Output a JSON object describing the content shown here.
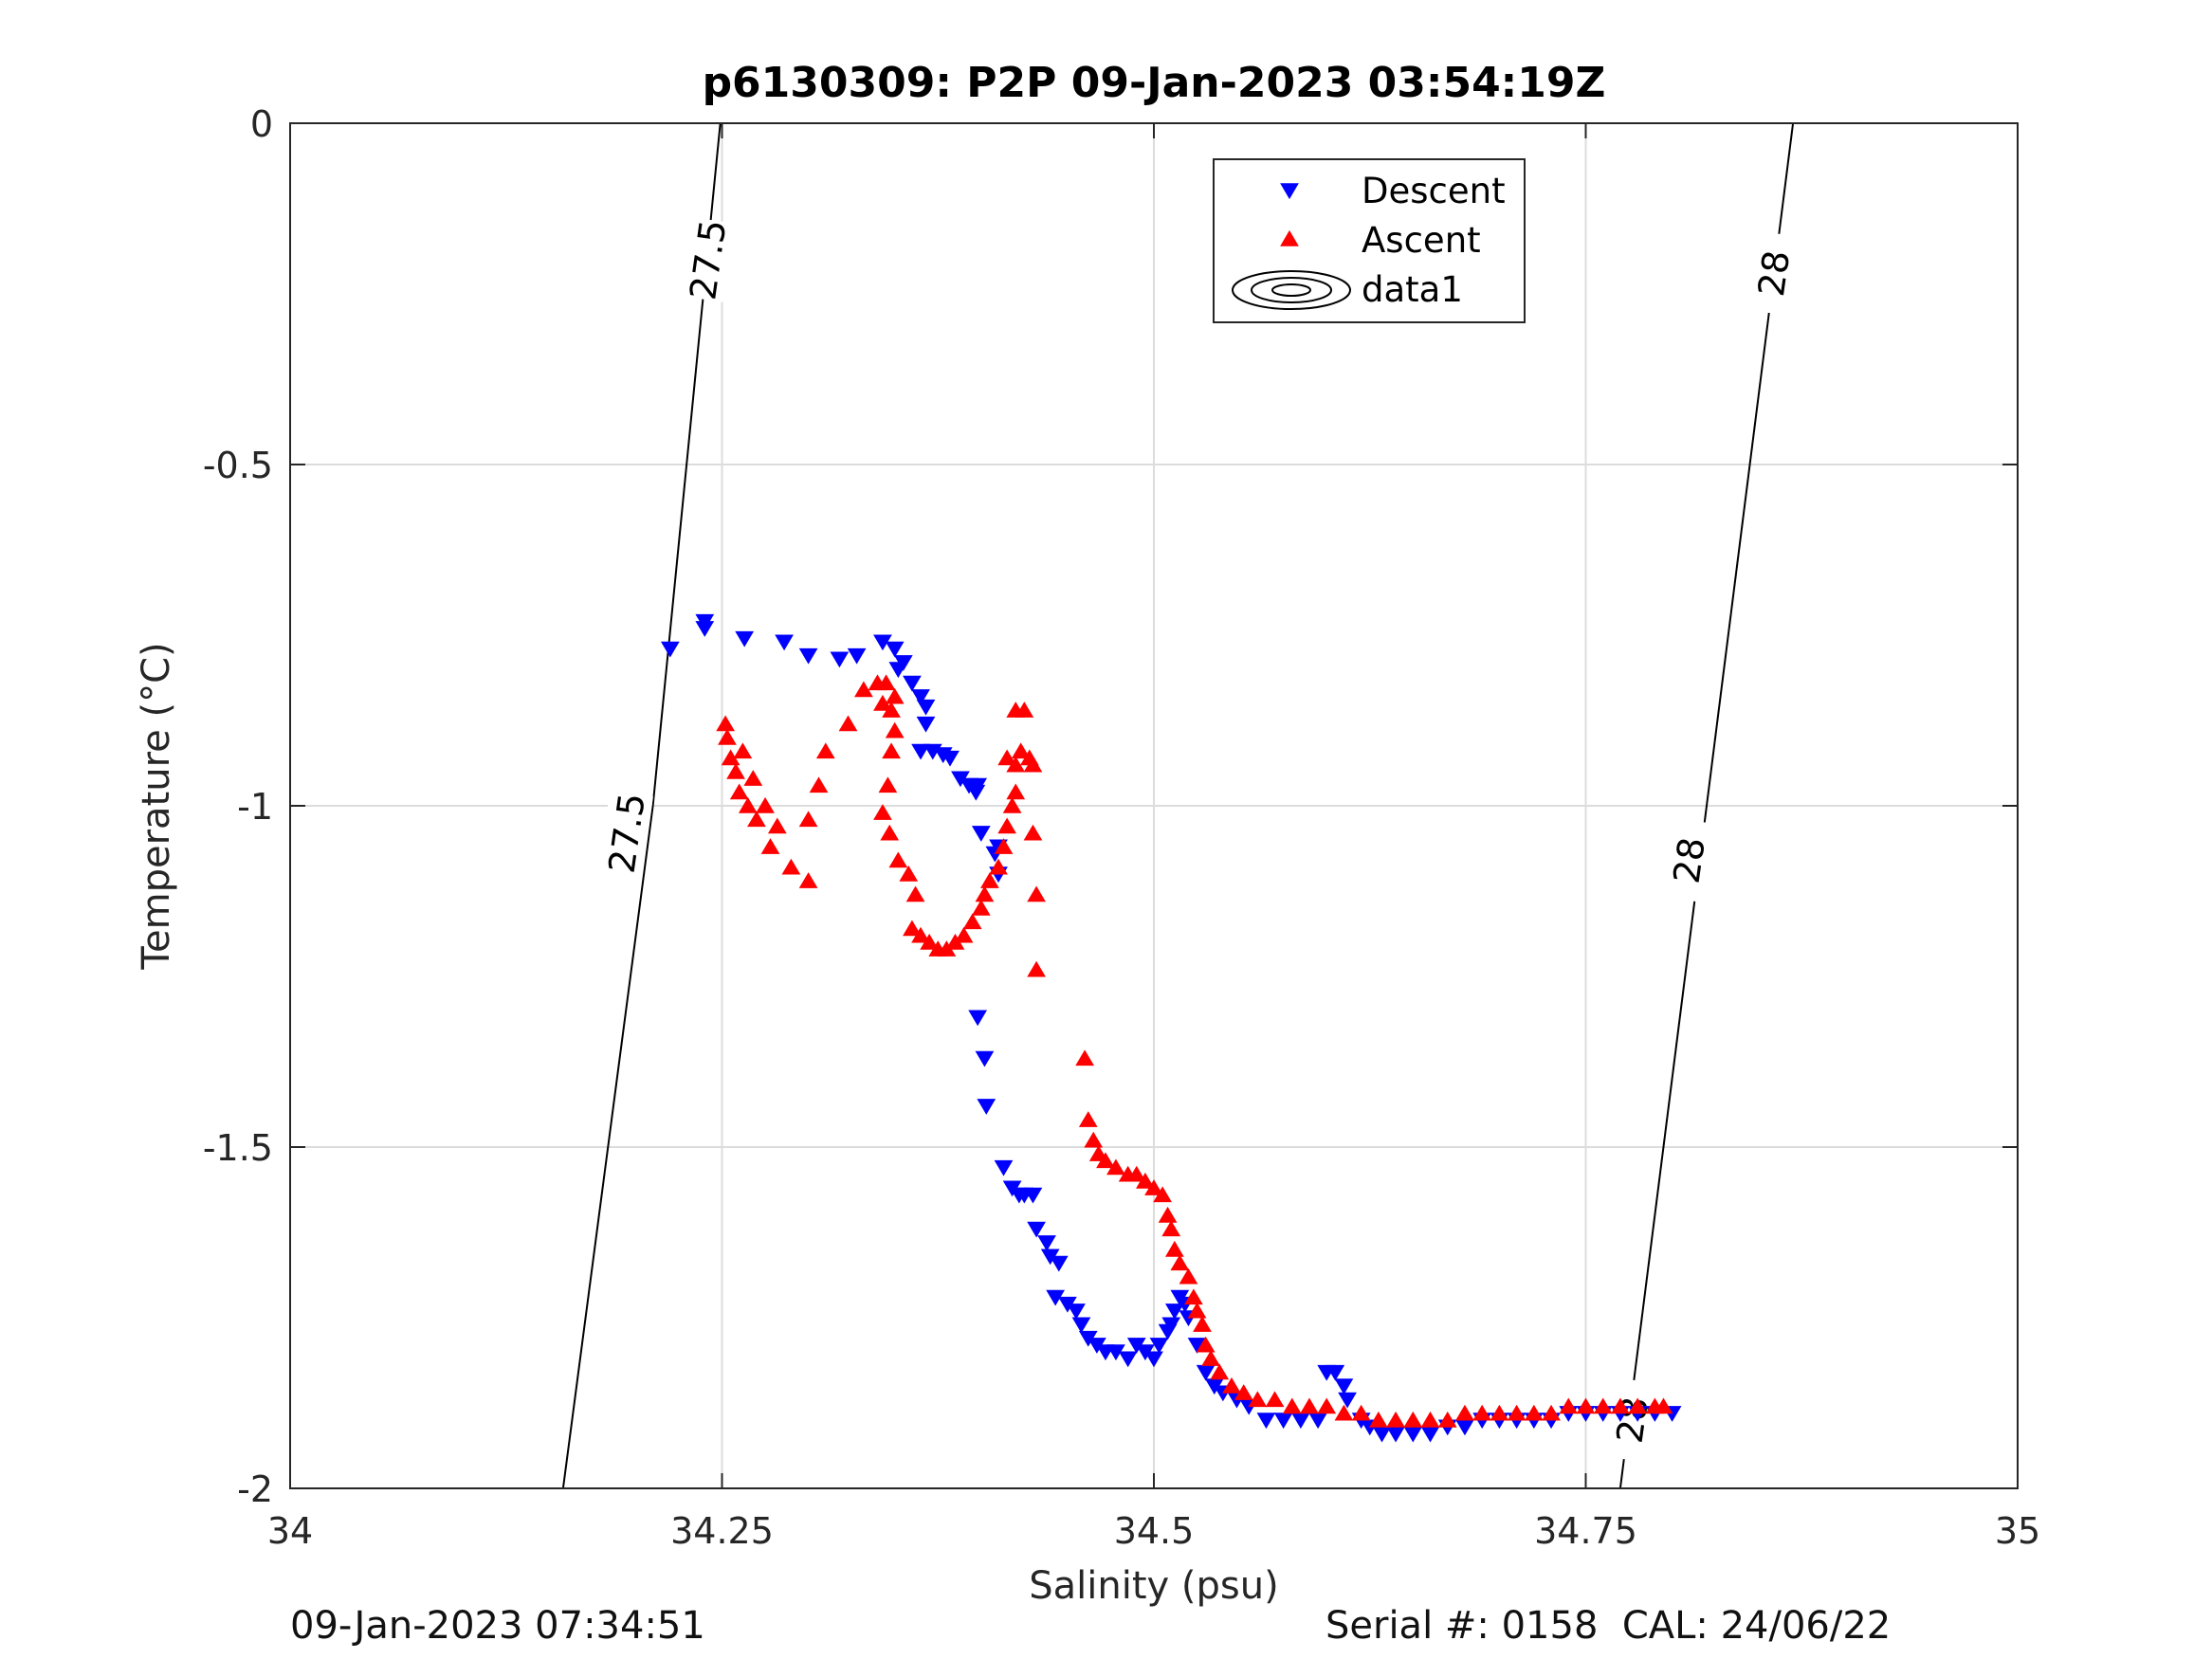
{
  "chart_data": {
    "type": "scatter",
    "title": "p6130309: P2P 09-Jan-2023 03:54:19Z",
    "xlabel": "Salinity (psu)",
    "ylabel": "Temperature (°C)",
    "xlim": [
      34,
      35
    ],
    "ylim": [
      -2,
      0
    ],
    "xticks": [
      34,
      34.25,
      34.5,
      34.75,
      35
    ],
    "xtick_labels": [
      "34",
      "34.25",
      "34.5",
      "34.75",
      "35"
    ],
    "yticks": [
      0,
      -0.5,
      -1,
      -1.5,
      -2
    ],
    "ytick_labels": [
      "0",
      "-0.5",
      "-1",
      "-1.5",
      "-2"
    ],
    "grid": true,
    "legend": {
      "placement": "top-center",
      "entries": [
        "Descent",
        "Ascent",
        "data1"
      ]
    },
    "isopycnals": [
      {
        "label": "27.5",
        "labels_shown": [
          "27.5",
          "27.5"
        ],
        "points": [
          [
            34.158,
            -2.0
          ],
          [
            34.21,
            -1.0
          ],
          [
            34.249,
            0.0
          ]
        ]
      },
      {
        "label": "28",
        "labels_shown": [
          "28",
          "28",
          "28"
        ],
        "points": [
          [
            34.77,
            -2.0
          ],
          [
            34.82,
            -1.0
          ],
          [
            34.87,
            0.0
          ]
        ]
      }
    ],
    "series": [
      {
        "name": "Descent",
        "color": "#0000ff",
        "marker": "triangle-down",
        "points": [
          [
            34.22,
            -0.77
          ],
          [
            34.24,
            -0.73
          ],
          [
            34.24,
            -0.74
          ],
          [
            34.263,
            -0.755
          ],
          [
            34.286,
            -0.76
          ],
          [
            34.3,
            -0.78
          ],
          [
            34.318,
            -0.785
          ],
          [
            34.328,
            -0.78
          ],
          [
            34.343,
            -0.76
          ],
          [
            34.35,
            -0.77
          ],
          [
            34.352,
            -0.8
          ],
          [
            34.355,
            -0.79
          ],
          [
            34.36,
            -0.82
          ],
          [
            34.365,
            -0.84
          ],
          [
            34.368,
            -0.855
          ],
          [
            34.368,
            -0.88
          ],
          [
            34.365,
            -0.92
          ],
          [
            34.372,
            -0.92
          ],
          [
            34.378,
            -0.925
          ],
          [
            34.382,
            -0.93
          ],
          [
            34.388,
            -0.96
          ],
          [
            34.393,
            -0.97
          ],
          [
            34.397,
            -0.98
          ],
          [
            34.398,
            -0.97
          ],
          [
            34.4,
            -1.04
          ],
          [
            34.408,
            -1.07
          ],
          [
            34.41,
            -1.06
          ],
          [
            34.41,
            -1.1
          ],
          [
            34.398,
            -1.31
          ],
          [
            34.402,
            -1.37
          ],
          [
            34.403,
            -1.44
          ],
          [
            34.413,
            -1.53
          ],
          [
            34.418,
            -1.56
          ],
          [
            34.422,
            -1.57
          ],
          [
            34.425,
            -1.57
          ],
          [
            34.43,
            -1.57
          ],
          [
            34.432,
            -1.62
          ],
          [
            34.438,
            -1.64
          ],
          [
            34.44,
            -1.66
          ],
          [
            34.445,
            -1.67
          ],
          [
            34.443,
            -1.72
          ],
          [
            34.45,
            -1.73
          ],
          [
            34.455,
            -1.74
          ],
          [
            34.458,
            -1.76
          ],
          [
            34.462,
            -1.78
          ],
          [
            34.467,
            -1.79
          ],
          [
            34.472,
            -1.8
          ],
          [
            34.478,
            -1.8
          ],
          [
            34.485,
            -1.81
          ],
          [
            34.49,
            -1.79
          ],
          [
            34.495,
            -1.8
          ],
          [
            34.5,
            -1.81
          ],
          [
            34.503,
            -1.79
          ],
          [
            34.508,
            -1.77
          ],
          [
            34.51,
            -1.76
          ],
          [
            34.512,
            -1.74
          ],
          [
            34.515,
            -1.72
          ],
          [
            34.518,
            -1.73
          ],
          [
            34.52,
            -1.75
          ],
          [
            34.525,
            -1.79
          ],
          [
            34.53,
            -1.83
          ],
          [
            34.535,
            -1.85
          ],
          [
            34.54,
            -1.86
          ],
          [
            34.548,
            -1.87
          ],
          [
            34.555,
            -1.88
          ],
          [
            34.565,
            -1.9
          ],
          [
            34.575,
            -1.9
          ],
          [
            34.585,
            -1.9
          ],
          [
            34.595,
            -1.9
          ],
          [
            34.6,
            -1.83
          ],
          [
            34.605,
            -1.83
          ],
          [
            34.61,
            -1.85
          ],
          [
            34.612,
            -1.87
          ],
          [
            34.62,
            -1.9
          ],
          [
            34.625,
            -1.91
          ],
          [
            34.632,
            -1.92
          ],
          [
            34.64,
            -1.92
          ],
          [
            34.65,
            -1.92
          ],
          [
            34.66,
            -1.92
          ],
          [
            34.67,
            -1.91
          ],
          [
            34.68,
            -1.91
          ],
          [
            34.69,
            -1.9
          ],
          [
            34.7,
            -1.9
          ],
          [
            34.71,
            -1.9
          ],
          [
            34.72,
            -1.9
          ],
          [
            34.73,
            -1.9
          ],
          [
            34.74,
            -1.89
          ],
          [
            34.75,
            -1.89
          ],
          [
            34.76,
            -1.89
          ],
          [
            34.77,
            -1.89
          ],
          [
            34.78,
            -1.89
          ],
          [
            34.79,
            -1.89
          ],
          [
            34.8,
            -1.89
          ]
        ]
      },
      {
        "name": "Ascent",
        "color": "#ff0000",
        "marker": "triangle-up",
        "points": [
          [
            34.252,
            -0.88
          ],
          [
            34.253,
            -0.9
          ],
          [
            34.255,
            -0.93
          ],
          [
            34.258,
            -0.95
          ],
          [
            34.26,
            -0.98
          ],
          [
            34.265,
            -1.0
          ],
          [
            34.27,
            -1.02
          ],
          [
            34.278,
            -1.06
          ],
          [
            34.29,
            -1.09
          ],
          [
            34.3,
            -1.11
          ],
          [
            34.262,
            -0.92
          ],
          [
            34.268,
            -0.96
          ],
          [
            34.275,
            -1.0
          ],
          [
            34.282,
            -1.03
          ],
          [
            34.3,
            -1.02
          ],
          [
            34.306,
            -0.97
          ],
          [
            34.31,
            -0.92
          ],
          [
            34.323,
            -0.88
          ],
          [
            34.332,
            -0.83
          ],
          [
            34.34,
            -0.82
          ],
          [
            34.345,
            -0.82
          ],
          [
            34.35,
            -0.84
          ],
          [
            34.348,
            -0.86
          ],
          [
            34.343,
            -0.85
          ],
          [
            34.35,
            -0.89
          ],
          [
            34.348,
            -0.92
          ],
          [
            34.346,
            -0.97
          ],
          [
            34.343,
            -1.01
          ],
          [
            34.347,
            -1.04
          ],
          [
            34.352,
            -1.08
          ],
          [
            34.358,
            -1.1
          ],
          [
            34.362,
            -1.13
          ],
          [
            34.36,
            -1.18
          ],
          [
            34.365,
            -1.19
          ],
          [
            34.37,
            -1.2
          ],
          [
            34.375,
            -1.21
          ],
          [
            34.38,
            -1.21
          ],
          [
            34.385,
            -1.2
          ],
          [
            34.39,
            -1.19
          ],
          [
            34.395,
            -1.17
          ],
          [
            34.4,
            -1.15
          ],
          [
            34.402,
            -1.13
          ],
          [
            34.405,
            -1.11
          ],
          [
            34.41,
            -1.09
          ],
          [
            34.413,
            -1.06
          ],
          [
            34.415,
            -1.03
          ],
          [
            34.418,
            -1.0
          ],
          [
            34.42,
            -0.98
          ],
          [
            34.42,
            -0.94
          ],
          [
            34.415,
            -0.93
          ],
          [
            34.423,
            -0.92
          ],
          [
            34.428,
            -0.93
          ],
          [
            34.43,
            -0.94
          ],
          [
            34.42,
            -0.86
          ],
          [
            34.425,
            -0.86
          ],
          [
            34.43,
            -1.04
          ],
          [
            34.432,
            -1.13
          ],
          [
            34.432,
            -1.24
          ],
          [
            34.46,
            -1.37
          ],
          [
            34.462,
            -1.46
          ],
          [
            34.465,
            -1.49
          ],
          [
            34.468,
            -1.51
          ],
          [
            34.472,
            -1.52
          ],
          [
            34.478,
            -1.53
          ],
          [
            34.485,
            -1.54
          ],
          [
            34.49,
            -1.54
          ],
          [
            34.495,
            -1.55
          ],
          [
            34.5,
            -1.56
          ],
          [
            34.505,
            -1.57
          ],
          [
            34.508,
            -1.6
          ],
          [
            34.51,
            -1.62
          ],
          [
            34.512,
            -1.65
          ],
          [
            34.515,
            -1.67
          ],
          [
            34.52,
            -1.69
          ],
          [
            34.523,
            -1.72
          ],
          [
            34.525,
            -1.74
          ],
          [
            34.528,
            -1.76
          ],
          [
            34.53,
            -1.79
          ],
          [
            34.533,
            -1.81
          ],
          [
            34.538,
            -1.83
          ],
          [
            34.545,
            -1.85
          ],
          [
            34.552,
            -1.86
          ],
          [
            34.56,
            -1.87
          ],
          [
            34.57,
            -1.87
          ],
          [
            34.58,
            -1.88
          ],
          [
            34.59,
            -1.88
          ],
          [
            34.6,
            -1.88
          ],
          [
            34.61,
            -1.89
          ],
          [
            34.62,
            -1.89
          ],
          [
            34.63,
            -1.9
          ],
          [
            34.64,
            -1.9
          ],
          [
            34.65,
            -1.9
          ],
          [
            34.66,
            -1.9
          ],
          [
            34.67,
            -1.9
          ],
          [
            34.68,
            -1.89
          ],
          [
            34.69,
            -1.89
          ],
          [
            34.7,
            -1.89
          ],
          [
            34.71,
            -1.89
          ],
          [
            34.72,
            -1.89
          ],
          [
            34.73,
            -1.89
          ],
          [
            34.74,
            -1.88
          ],
          [
            34.75,
            -1.88
          ],
          [
            34.76,
            -1.88
          ],
          [
            34.77,
            -1.88
          ],
          [
            34.78,
            -1.88
          ],
          [
            34.79,
            -1.88
          ],
          [
            34.795,
            -1.88
          ]
        ]
      }
    ]
  },
  "footer": {
    "left": "09-Jan-2023 07:34:51",
    "right": "Serial #: 0158  CAL: 24/06/22"
  }
}
